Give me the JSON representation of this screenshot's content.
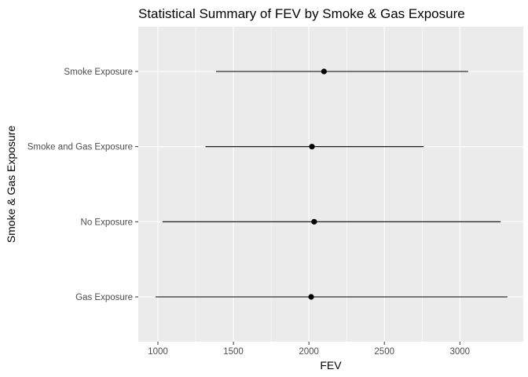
{
  "chart_data": {
    "type": "pointrange",
    "title": "Statistical Summary of FEV by Smoke & Gas Exposure",
    "xlabel": "FEV",
    "ylabel": "Smoke & Gas Exposure",
    "xlim": [
      870,
      3420
    ],
    "x_ticks": [
      1000,
      1500,
      2000,
      2500,
      3000
    ],
    "x_tick_labels": [
      "1000",
      "1500",
      "2000",
      "2500",
      "3000"
    ],
    "categories": [
      "Gas Exposure",
      "No Exposure",
      "Smoke and Gas Exposure",
      "Smoke Exposure"
    ],
    "series": [
      {
        "points": [
          {
            "category": "Gas Exposure",
            "min": 985,
            "center": 2015,
            "max": 3315
          },
          {
            "category": "No Exposure",
            "min": 1030,
            "center": 2035,
            "max": 3270
          },
          {
            "category": "Smoke and Gas Exposure",
            "min": 1315,
            "center": 2020,
            "max": 2760
          },
          {
            "category": "Smoke Exposure",
            "min": 1385,
            "center": 2100,
            "max": 3055
          }
        ]
      }
    ],
    "grid": true,
    "point_color": "#000000",
    "line_color": "#000000",
    "panel_background": "#ebebeb",
    "gridline_color": "#ffffff"
  }
}
